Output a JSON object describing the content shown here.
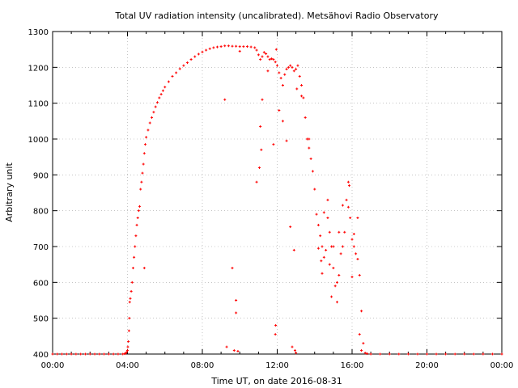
{
  "chart_data": {
    "type": "scatter",
    "title": "Total UV radiation intensity (uncalibrated). Metsähovi Radio Observatory",
    "xlabel": "Time UT, on date 2016-08-31",
    "ylabel": "Arbitrary unit",
    "xlim": [
      "00:00",
      "24:00"
    ],
    "ylim": [
      400,
      1300
    ],
    "x_ticks": [
      "00:00",
      "04:00",
      "08:00",
      "12:00",
      "16:00",
      "20:00",
      "00:00"
    ],
    "y_ticks": [
      "400",
      "500",
      "600",
      "700",
      "800",
      "900",
      "1000",
      "1100",
      "1200",
      "1300"
    ],
    "grid": true,
    "grid_style": "dotted",
    "marker_color": "#ff0000",
    "x_unit": "hours UT",
    "series": [
      {
        "points": [
          [
            0.0,
            400
          ],
          [
            0.25,
            400
          ],
          [
            0.5,
            400
          ],
          [
            0.75,
            400
          ],
          [
            1.0,
            400
          ],
          [
            1.25,
            400
          ],
          [
            1.5,
            400
          ],
          [
            1.75,
            400
          ],
          [
            2.0,
            400
          ],
          [
            2.25,
            400
          ],
          [
            2.5,
            400
          ],
          [
            2.75,
            400
          ],
          [
            3.0,
            400
          ],
          [
            3.25,
            400
          ],
          [
            3.5,
            400
          ],
          [
            3.75,
            400
          ],
          [
            3.85,
            401
          ],
          [
            3.9,
            402
          ],
          [
            3.95,
            405
          ],
          [
            4.0,
            410
          ],
          [
            4.02,
            420
          ],
          [
            4.05,
            435
          ],
          [
            4.08,
            465
          ],
          [
            4.1,
            500
          ],
          [
            4.12,
            545
          ],
          [
            4.15,
            555
          ],
          [
            4.2,
            575
          ],
          [
            4.25,
            600
          ],
          [
            4.3,
            640
          ],
          [
            4.35,
            670
          ],
          [
            4.4,
            700
          ],
          [
            4.45,
            730
          ],
          [
            4.5,
            760
          ],
          [
            4.55,
            780
          ],
          [
            4.6,
            800
          ],
          [
            4.65,
            812
          ],
          [
            4.7,
            860
          ],
          [
            4.75,
            880
          ],
          [
            4.8,
            905
          ],
          [
            4.85,
            930
          ],
          [
            4.9,
            960
          ],
          [
            4.95,
            985
          ],
          [
            5.0,
            1005
          ],
          [
            5.1,
            1025
          ],
          [
            5.2,
            1045
          ],
          [
            5.3,
            1060
          ],
          [
            5.4,
            1075
          ],
          [
            5.5,
            1090
          ],
          [
            5.6,
            1102
          ],
          [
            5.7,
            1115
          ],
          [
            5.8,
            1125
          ],
          [
            5.9,
            1135
          ],
          [
            6.0,
            1145
          ],
          [
            6.2,
            1160
          ],
          [
            6.4,
            1175
          ],
          [
            6.6,
            1185
          ],
          [
            6.8,
            1196
          ],
          [
            7.0,
            1205
          ],
          [
            7.2,
            1213
          ],
          [
            7.4,
            1222
          ],
          [
            7.6,
            1230
          ],
          [
            7.8,
            1237
          ],
          [
            8.0,
            1243
          ],
          [
            8.2,
            1248
          ],
          [
            8.4,
            1252
          ],
          [
            8.6,
            1255
          ],
          [
            8.8,
            1257
          ],
          [
            9.0,
            1258
          ],
          [
            9.2,
            1260
          ],
          [
            9.4,
            1260
          ],
          [
            9.6,
            1259
          ],
          [
            9.8,
            1259
          ],
          [
            10.0,
            1258
          ],
          [
            10.2,
            1258
          ],
          [
            10.4,
            1258
          ],
          [
            10.6,
            1257
          ],
          [
            10.8,
            1255
          ],
          [
            10.9,
            1248
          ],
          [
            11.0,
            1235
          ],
          [
            11.1,
            1222
          ],
          [
            11.2,
            1230
          ],
          [
            11.3,
            1242
          ],
          [
            11.4,
            1238
          ],
          [
            11.5,
            1230
          ],
          [
            11.6,
            1222
          ],
          [
            11.7,
            1224
          ],
          [
            11.8,
            1222
          ],
          [
            11.9,
            1215
          ],
          [
            12.0,
            1205
          ],
          [
            12.1,
            1185
          ],
          [
            12.2,
            1170
          ],
          [
            12.3,
            1150
          ],
          [
            12.4,
            1180
          ],
          [
            12.5,
            1195
          ],
          [
            12.6,
            1200
          ],
          [
            12.7,
            1205
          ],
          [
            12.8,
            1200
          ],
          [
            12.9,
            1190
          ],
          [
            13.0,
            1195
          ],
          [
            13.1,
            1205
          ],
          [
            13.2,
            1175
          ],
          [
            13.3,
            1150
          ],
          [
            13.4,
            1115
          ],
          [
            13.5,
            1060
          ],
          [
            13.6,
            1000
          ],
          [
            13.7,
            975
          ],
          [
            13.8,
            945
          ],
          [
            13.9,
            910
          ],
          [
            14.0,
            860
          ],
          [
            14.1,
            790
          ],
          [
            14.2,
            760
          ],
          [
            14.3,
            730
          ],
          [
            14.4,
            700
          ],
          [
            14.5,
            670
          ],
          [
            14.6,
            690
          ],
          [
            14.7,
            780
          ],
          [
            14.8,
            740
          ],
          [
            14.9,
            700
          ],
          [
            15.0,
            640
          ],
          [
            15.1,
            590
          ],
          [
            15.2,
            600
          ],
          [
            15.3,
            620
          ],
          [
            15.4,
            680
          ],
          [
            15.5,
            700
          ],
          [
            15.6,
            740
          ],
          [
            15.7,
            830
          ],
          [
            15.8,
            810
          ],
          [
            15.9,
            780
          ],
          [
            16.0,
            720
          ],
          [
            16.1,
            700
          ],
          [
            16.2,
            680
          ],
          [
            16.3,
            665
          ],
          [
            16.4,
            620
          ],
          [
            16.5,
            520
          ],
          [
            16.6,
            430
          ],
          [
            16.7,
            403
          ],
          [
            16.8,
            401
          ],
          [
            17.0,
            400
          ],
          [
            17.5,
            400
          ],
          [
            18.0,
            400
          ],
          [
            18.5,
            400
          ],
          [
            19.0,
            400
          ],
          [
            19.5,
            400
          ],
          [
            20.0,
            400
          ],
          [
            20.5,
            400
          ],
          [
            21.0,
            400
          ],
          [
            21.5,
            400
          ],
          [
            22.0,
            400
          ],
          [
            22.5,
            400
          ],
          [
            23.0,
            400
          ],
          [
            23.5,
            400
          ],
          [
            24.0,
            400
          ],
          [
            4.9,
            640
          ],
          [
            9.2,
            1110
          ],
          [
            9.3,
            420
          ],
          [
            9.6,
            640
          ],
          [
            9.7,
            410
          ],
          [
            9.8,
            550
          ],
          [
            9.8,
            515
          ],
          [
            9.9,
            408
          ],
          [
            10.0,
            1245
          ],
          [
            10.9,
            880
          ],
          [
            11.05,
            920
          ],
          [
            11.2,
            1110
          ],
          [
            11.1,
            1035
          ],
          [
            11.15,
            970
          ],
          [
            11.5,
            1190
          ],
          [
            11.8,
            985
          ],
          [
            11.95,
            1250
          ],
          [
            11.9,
            455
          ],
          [
            11.92,
            480
          ],
          [
            12.1,
            1080
          ],
          [
            12.3,
            1050
          ],
          [
            12.5,
            995
          ],
          [
            12.7,
            755
          ],
          [
            12.8,
            420
          ],
          [
            12.9,
            690
          ],
          [
            12.95,
            410
          ],
          [
            13.0,
            403
          ],
          [
            13.05,
            1140
          ],
          [
            13.3,
            1120
          ],
          [
            13.7,
            1000
          ],
          [
            14.2,
            695
          ],
          [
            14.35,
            660
          ],
          [
            14.4,
            625
          ],
          [
            14.5,
            795
          ],
          [
            14.7,
            830
          ],
          [
            14.8,
            650
          ],
          [
            14.9,
            560
          ],
          [
            15.0,
            700
          ],
          [
            15.2,
            545
          ],
          [
            15.3,
            740
          ],
          [
            15.5,
            815
          ],
          [
            15.8,
            880
          ],
          [
            15.85,
            870
          ],
          [
            16.0,
            615
          ],
          [
            16.1,
            735
          ],
          [
            16.3,
            780
          ],
          [
            16.4,
            455
          ],
          [
            16.5,
            410
          ]
        ]
      }
    ]
  }
}
